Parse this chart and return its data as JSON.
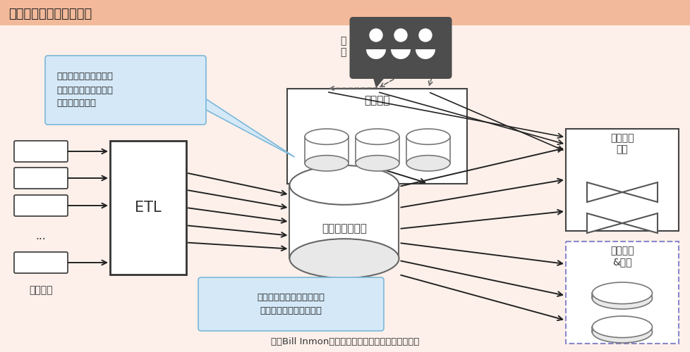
{
  "title": "企业级数据仓库体系架构",
  "subtitle": "采用Bill Inmon建模理论的企业级数据仓库体系架构",
  "bg_color": "#fdf0ea",
  "title_bg": "#f2b99a",
  "etl_label": "ETL",
  "edw_label": "企业级数据仓库",
  "dm_label": "数据集市",
  "user_label": "用\n户",
  "ops_label": "操作系统",
  "dss_label": "决策支持\n系统",
  "da_label": "数据分析\n&挖掘",
  "callout1": "部门级的数据，用于部\n门级的数据分析（通常\n采用维度建模）",
  "callout2": "原子的、采用第三范式建模\n的、集成的企业数据仓库",
  "callout_fill": "#d4e8f7",
  "callout_edge": "#7ab8d9",
  "arrow_color": "#222222",
  "box_edge": "#444444",
  "cyl_edge": "#666666",
  "dss_edge": "#444444",
  "da_edge": "#8888cc",
  "user_fill": "#555555"
}
